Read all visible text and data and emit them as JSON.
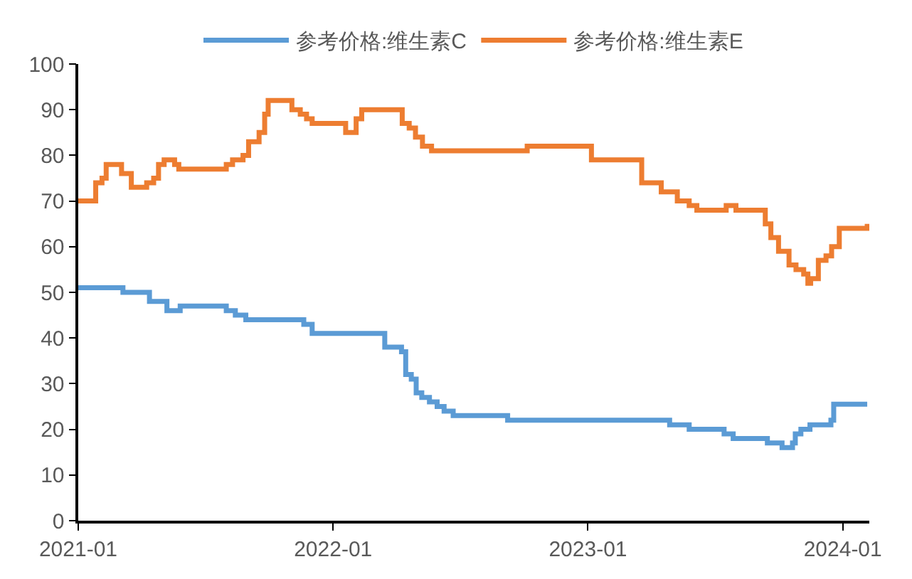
{
  "chart_data": {
    "type": "step",
    "ylim": [
      0,
      100
    ],
    "yticks": [
      0,
      10,
      20,
      30,
      40,
      50,
      60,
      70,
      80,
      90,
      100
    ],
    "xlim": [
      "2021-01-01",
      "2024-02-08"
    ],
    "xticks": [
      "2021-01",
      "2022-01",
      "2023-01",
      "2024-01"
    ],
    "legend": "top",
    "marker": "none",
    "line_style": "solid",
    "series": [
      {
        "name": "参考价格:维生素C",
        "color": "#5b9bd5",
        "x": [
          "2021-01-01",
          "2021-03-06",
          "2021-04-13",
          "2021-05-08",
          "2021-05-27",
          "2021-08-01",
          "2021-08-14",
          "2021-08-29",
          "2021-11-20",
          "2021-12-02",
          "2022-03-16",
          "2022-04-09",
          "2022-04-15",
          "2022-04-23",
          "2022-04-30",
          "2022-05-08",
          "2022-05-19",
          "2022-05-30",
          "2022-06-09",
          "2022-06-22",
          "2022-09-08",
          "2023-04-28",
          "2023-05-26",
          "2023-07-15",
          "2023-07-28",
          "2023-09-15",
          "2023-10-06",
          "2023-10-21",
          "2023-10-25",
          "2023-11-02",
          "2023-11-15",
          "2023-12-15",
          "2023-12-19",
          "2024-02-05"
        ],
        "values": [
          51,
          50,
          48,
          46,
          47,
          46,
          45,
          44,
          43,
          41,
          38,
          37,
          32,
          31,
          28,
          27,
          26,
          25,
          24,
          23,
          22,
          21,
          20,
          19,
          18,
          17,
          16,
          17,
          19,
          20,
          21,
          22,
          25.5,
          25.5
        ]
      },
      {
        "name": "参考价格:维生素E",
        "color": "#ed7d31",
        "x": [
          "2021-01-01",
          "2021-01-26",
          "2021-02-04",
          "2021-02-10",
          "2021-03-04",
          "2021-03-18",
          "2021-04-09",
          "2021-04-19",
          "2021-04-26",
          "2021-05-04",
          "2021-05-19",
          "2021-05-25",
          "2021-08-01",
          "2021-08-10",
          "2021-08-25",
          "2021-09-02",
          "2021-09-17",
          "2021-09-25",
          "2021-09-30",
          "2021-11-03",
          "2021-11-15",
          "2021-11-24",
          "2021-12-02",
          "2022-01-19",
          "2022-02-03",
          "2022-02-11",
          "2022-04-10",
          "2022-04-20",
          "2022-04-29",
          "2022-05-09",
          "2022-05-22",
          "2022-10-06",
          "2023-01-06",
          "2023-03-19",
          "2023-04-16",
          "2023-05-09",
          "2023-05-26",
          "2023-06-06",
          "2023-07-18",
          "2023-08-01",
          "2023-09-12",
          "2023-09-20",
          "2023-10-01",
          "2023-10-16",
          "2023-10-26",
          "2023-11-06",
          "2023-11-12",
          "2023-11-16",
          "2023-11-27",
          "2023-12-08",
          "2023-12-16",
          "2023-12-27",
          "2024-02-04",
          "2024-02-05"
        ],
        "values": [
          70,
          74,
          75,
          78,
          76,
          73,
          74,
          75,
          78,
          79,
          78,
          77,
          78,
          79,
          80,
          83,
          85,
          89,
          92,
          90,
          89,
          88,
          87,
          85,
          88,
          90,
          87,
          86,
          84,
          82,
          81,
          82,
          79,
          74,
          72,
          70,
          69,
          68,
          69,
          68,
          65,
          62,
          59,
          56,
          55,
          54,
          52,
          53,
          57,
          58,
          60,
          64,
          64,
          65
        ]
      }
    ]
  }
}
